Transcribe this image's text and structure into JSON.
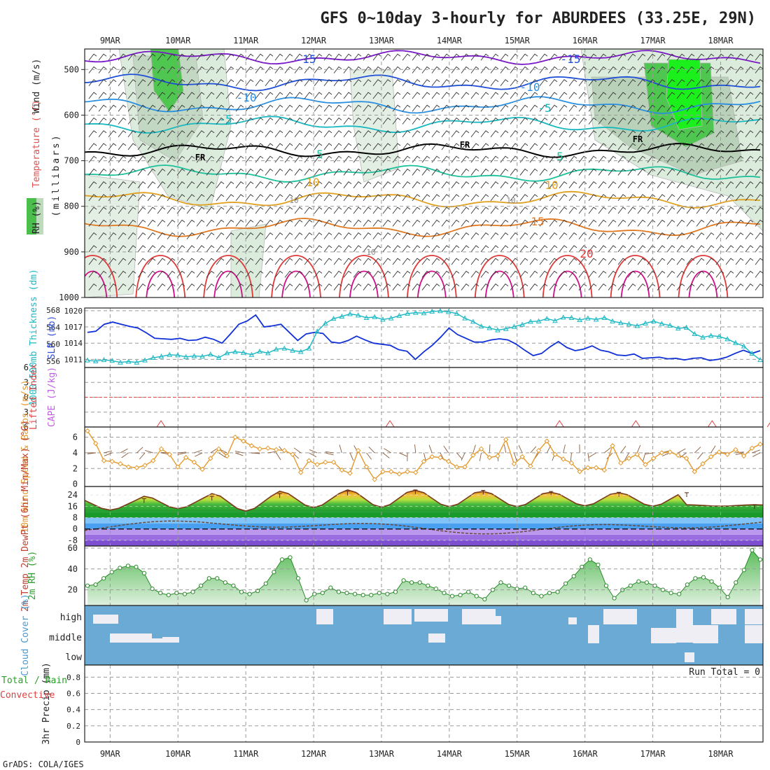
{
  "title": "GFS 0~10day 3-hourly for ABURDEES (33.25E, 29N)",
  "credit": "GrADS: COLA/IGES",
  "chart_data": {
    "type": "line",
    "date_ticks": [
      "9MAR",
      "10MAR",
      "11MAR",
      "12MAR",
      "13MAR",
      "14MAR",
      "15MAR",
      "16MAR",
      "17MAR",
      "18MAR"
    ],
    "x_start_hours": -9,
    "x_end_hours": 231,
    "panels": {
      "upper_air": {
        "y_label": "(millibars)",
        "legend": [
          "RH (%)",
          "Temperature (°C)",
          "Wind (m/s)"
        ],
        "yticks": [
          500,
          600,
          700,
          800,
          900,
          1000
        ],
        "ylim": [
          455,
          1000
        ],
        "contour_labels": [
          "-15",
          "-15",
          "-10",
          "-10",
          "-5",
          "-5",
          "FR",
          "FR",
          "FR",
          "5",
          "5",
          "10",
          "10",
          "15",
          "20",
          "10",
          "10",
          "10"
        ],
        "isotherm_levels": [
          -20,
          -15,
          -10,
          -5,
          0,
          5,
          10,
          15,
          20,
          25
        ]
      },
      "slp_thickness": {
        "label_thickness": "1000-500mb Thickness (dm)",
        "label_slp": "SLP (mb)",
        "thickness_ticks": [
          556,
          560,
          564,
          568
        ],
        "slp_ticks": [
          1011,
          1014,
          1017,
          1020
        ],
        "slp_range": [
          1009.5,
          1020.5
        ],
        "slp": [
          1016,
          1016.2,
          1017.5,
          1017.9,
          1017.5,
          1017.1,
          1016.8,
          1015.9,
          1014.9,
          1014.8,
          1014.7,
          1014.9,
          1014.5,
          1014.6,
          1015.1,
          1014.7,
          1014.0,
          1015.7,
          1017.5,
          1018.1,
          1019.2,
          1017.0,
          1017.2,
          1017.5,
          1016.0,
          1014.5,
          1015.7,
          1016.0,
          1015.8,
          1014.2,
          1014.0,
          1014.5,
          1015.3,
          1014.6,
          1014.0,
          1013.8,
          1013.6,
          1012.8,
          1012.5,
          1011.0,
          1012.4,
          1013.6,
          1015.1,
          1016.8,
          1015.6,
          1014.9,
          1014.2,
          1014.2,
          1014.6,
          1014.8,
          1014.6,
          1013.8,
          1012.7,
          1011.7,
          1012.1,
          1013.3,
          1014.3,
          1013.2,
          1012.6,
          1012.9,
          1013.5,
          1012.7,
          1012.4,
          1011.8,
          1011.7,
          1012.0,
          1011.2,
          1011.3,
          1011.4,
          1011.1,
          1011.2,
          1010.9,
          1011.2,
          1011.3,
          1010.8,
          1011.0,
          1011.4,
          1012.1,
          1012.7,
          1012.1,
          1012.6
        ],
        "thickness": [
          556.2,
          556.0,
          556.3,
          556.1,
          555.7,
          555.9,
          555.7,
          556.2,
          556.8,
          557.1,
          557.5,
          557.4,
          557.0,
          557.2,
          557.1,
          557.6,
          556.8,
          557.9,
          558.2,
          558.0,
          557.5,
          558.3,
          557.9,
          558.8,
          559.0,
          558.5,
          558.2,
          559.0,
          563.0,
          564.9,
          566.0,
          566.5,
          567.1,
          566.8,
          566.2,
          566.4,
          565.8,
          566.1,
          566.7,
          567.2,
          567.4,
          567.3,
          567.7,
          567.8,
          567.6,
          567.2,
          566.1,
          565.3,
          564.2,
          563.8,
          563.3,
          563.6,
          564.1,
          564.6,
          565.3,
          565.4,
          566.0,
          565.5,
          566.3,
          566.2,
          565.7,
          566.1,
          565.8,
          566.2,
          565.4,
          565.0,
          564.7,
          564.3,
          564.9,
          565.4,
          564.8,
          564.4,
          563.7,
          563.9,
          562.4,
          561.6,
          562.0,
          561.8,
          561.2,
          560.3,
          559.5,
          557.8,
          556.3
        ]
      },
      "instability": {
        "label_li": "Lifted Index",
        "label_cape": "CAPE (J/kg)",
        "yticks": [
          "6",
          "3",
          "0",
          "3",
          "6"
        ],
        "lifted_index_peaks_hours": [
          18,
          99,
          159,
          186,
          213,
          234
        ]
      },
      "wind_10m": {
        "label": "10m Wind Speed & Barbs (m/s)",
        "yticks": [
          0,
          2,
          4,
          6
        ],
        "speed": [
          6.8,
          5.2,
          3.0,
          2.9,
          2.6,
          2.2,
          2.1,
          2.4,
          3.0,
          4.5,
          3.8,
          2.2,
          3.4,
          2.8,
          1.9,
          3.3,
          4.5,
          3.6,
          6.0,
          5.5,
          4.9,
          4.5,
          4.6,
          4.4,
          4.3,
          3.8,
          1.5,
          3.0,
          2.5,
          2.8,
          2.8,
          1.8,
          1.4,
          4.3,
          2.2,
          0.6,
          1.6,
          1.6,
          1.3,
          1.6,
          1.5,
          2.9,
          3.5,
          3.4,
          2.9,
          2.2,
          2.2,
          3.7,
          4.5,
          3.4,
          3.6,
          5.7,
          2.6,
          3.5,
          2.3,
          4.3,
          5.5,
          3.8,
          3.2,
          2.7,
          1.6,
          2.1,
          2.1,
          1.8,
          4.9,
          2.7,
          3.3,
          3.8,
          2.5,
          3.3,
          4.0,
          4.1,
          3.7,
          3.3,
          1.6,
          2.6,
          3.5,
          4.1,
          3.8,
          4.4,
          3.6,
          4.6,
          5.1
        ]
      },
      "temp_2m": {
        "label": "2m Temp 2m DewPt (6hr Min/Max) (°C)",
        "yticks": [
          -8,
          0,
          8,
          16,
          24
        ],
        "temp_max_days": [
          21.4,
          23.1,
          25.0,
          26.7,
          27.6,
          27.3,
          26.5,
          25.9,
          25.6,
          17.1
        ],
        "temp_min_days": [
          13.4,
          14.4,
          12.7,
          15.2,
          15.4,
          15.8,
          15.8,
          16.4,
          16.1
        ],
        "dewpoint_range": [
          -3.5,
          6.5
        ]
      },
      "rh_2m": {
        "label": "2m RH (%)",
        "yticks": [
          20,
          40,
          60
        ],
        "rh": [
          24,
          25,
          31,
          37,
          41,
          43,
          42,
          36,
          21,
          17,
          15,
          17,
          16,
          18,
          24,
          31,
          31,
          27,
          24,
          18,
          16,
          19,
          26,
          37,
          49,
          51,
          31,
          10,
          16,
          17,
          22,
          18,
          17,
          16,
          15,
          15,
          17,
          16,
          18,
          29,
          27,
          27,
          24,
          21,
          17,
          14,
          15,
          18,
          14,
          11,
          20,
          27,
          24,
          21,
          22,
          17,
          14,
          17,
          18,
          26,
          33,
          42,
          49,
          44,
          24,
          12,
          20,
          24,
          28,
          27,
          24,
          20,
          17,
          16,
          25,
          31,
          32,
          28,
          22,
          13,
          27,
          39,
          58,
          49
        ]
      },
      "cloud_cover": {
        "label": "Cloud Cover (%)",
        "levels": [
          "high",
          "middle",
          "low"
        ]
      },
      "precip": {
        "label_left": "Total / Rain Convective",
        "label": "3hr Precip (mm)",
        "yticks": [
          "0",
          "0.2",
          "0.4",
          "0.6",
          "0.8"
        ],
        "run_total": "Run Total = 0"
      }
    }
  },
  "colors": {
    "temp_cold": "#7a17c8",
    "slp": "#1030d8",
    "thickness": "#1cb8c4",
    "wind_speed": "#e49a2c",
    "rh_fill": "#6ac46a",
    "cloud_blue": "#6aaad4",
    "freezing": "#000000",
    "li_red": "#e04040"
  }
}
